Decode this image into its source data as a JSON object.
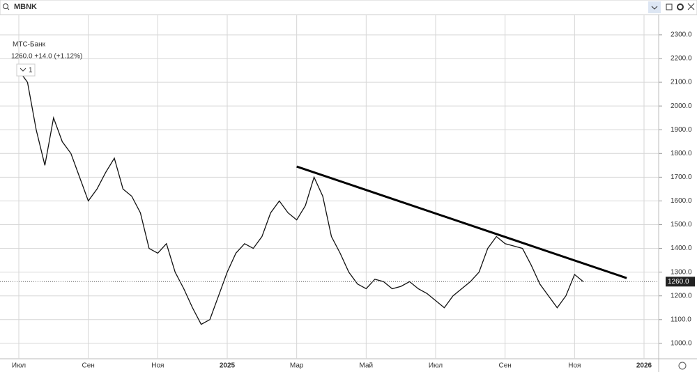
{
  "header": {
    "symbol": "MBNK",
    "name": "МТС-Банк",
    "quote": "1260.0 +14.0 (+1.12%)",
    "interval": "1"
  },
  "chart_data": {
    "type": "line",
    "color": "#111111",
    "categories": [
      "Июл",
      null,
      null,
      null,
      null,
      null,
      null,
      null,
      "Сен",
      null,
      null,
      null,
      null,
      null,
      null,
      null,
      "Ноя",
      null,
      null,
      null,
      null,
      null,
      null,
      null,
      "2025",
      null,
      null,
      null,
      null,
      null,
      null,
      null,
      "Мар",
      null,
      null,
      null,
      null,
      null,
      null,
      null,
      "Май",
      null,
      null,
      null,
      null,
      null,
      null,
      null,
      "Июл",
      null,
      null,
      null,
      null,
      null,
      null,
      null,
      "Сен",
      null,
      null,
      null,
      null,
      null,
      null,
      null,
      "Ноя",
      null,
      null,
      null,
      null,
      null,
      null,
      null,
      "2026"
    ],
    "values": [
      2150,
      2100,
      1900,
      1750,
      1950,
      1850,
      1800,
      1700,
      1600,
      1650,
      1720,
      1780,
      1650,
      1620,
      1550,
      1400,
      1380,
      1420,
      1300,
      1230,
      1150,
      1080,
      1100,
      1200,
      1300,
      1380,
      1420,
      1400,
      1450,
      1550,
      1600,
      1550,
      1520,
      1580,
      1700,
      1620,
      1450,
      1380,
      1300,
      1250,
      1230,
      1270,
      1260,
      1230,
      1240,
      1260,
      1230,
      1210,
      1180,
      1150,
      1200,
      1230,
      1260,
      1300,
      1400,
      1450,
      1420,
      1410,
      1400,
      1330,
      1250,
      1200,
      1150,
      1200,
      1290,
      1260,
      null,
      null,
      null,
      null,
      null,
      null,
      null
    ],
    "ylim": [
      935,
      2382
    ],
    "yticks": [
      {
        "value": 1000,
        "label": "1000.0"
      },
      {
        "value": 1100,
        "label": "1100.0"
      },
      {
        "value": 1200,
        "label": "1200.0"
      },
      {
        "value": 1300,
        "label": "1300.0"
      },
      {
        "value": 1400,
        "label": "1400.0"
      },
      {
        "value": 1500,
        "label": "1500.0"
      },
      {
        "value": 1600,
        "label": "1600.0"
      },
      {
        "value": 1700,
        "label": "1700.0"
      },
      {
        "value": 1800,
        "label": "1800.0"
      },
      {
        "value": 1900,
        "label": "1900.0"
      },
      {
        "value": 2000,
        "label": "2000.0"
      },
      {
        "value": 2100,
        "label": "2100.0"
      },
      {
        "value": 2200,
        "label": "2200.0"
      },
      {
        "value": 2300,
        "label": "2300.0"
      }
    ],
    "last_price": {
      "value": 1260,
      "label": "1260.0"
    },
    "trendline": {
      "x": [
        32,
        70
      ],
      "y": [
        1745,
        1275
      ]
    },
    "grid": true
  }
}
